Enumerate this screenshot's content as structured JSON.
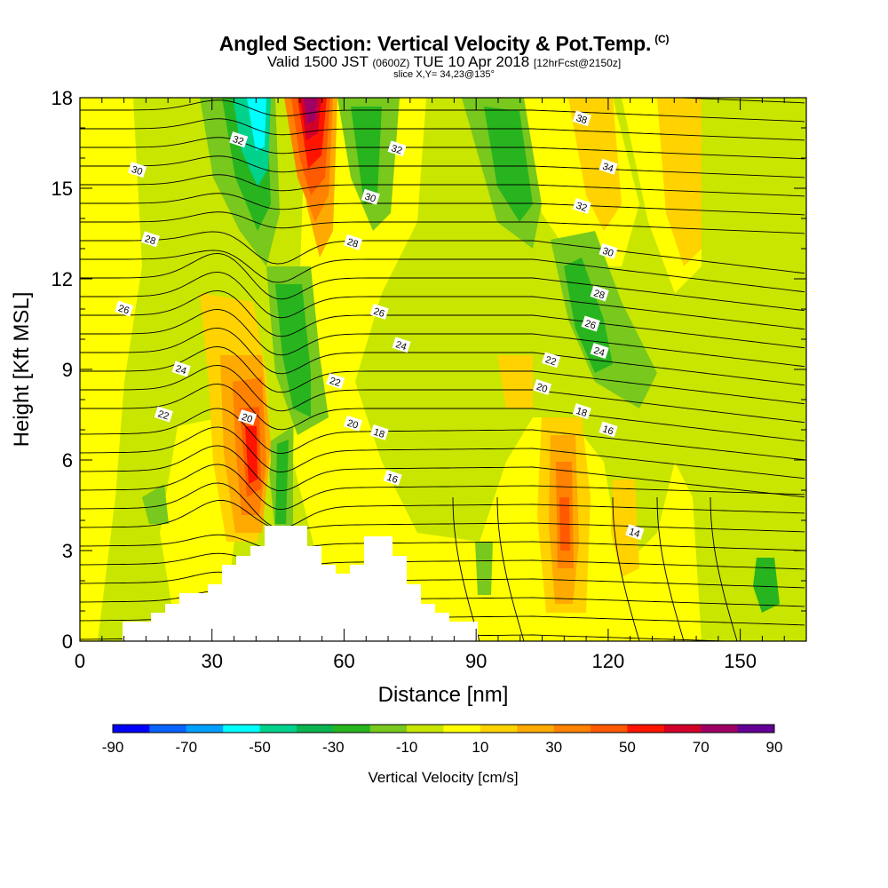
{
  "header": {
    "title": "Angled Section: Vertical Velocity & Pot.Temp.",
    "copyright": "(C)",
    "valid_main": "Valid 1500 JST",
    "valid_utc": "(0600Z)",
    "valid_date": "TUE 10 Apr 2018",
    "forecast": "[12hrFcst@2150z]",
    "slice": "slice X,Y= 34,23@135°"
  },
  "chart_data": {
    "type": "heatmap",
    "xlabel": "Distance [nm]",
    "ylabel": "Height [Kft MSL]",
    "xlim": [
      0,
      165
    ],
    "ylim": [
      0,
      18
    ],
    "x_ticks": [
      "0",
      "30",
      "60",
      "90",
      "120",
      "150"
    ],
    "x_tick_values": [
      0,
      30,
      60,
      90,
      120,
      150
    ],
    "y_ticks": [
      "0",
      "3",
      "6",
      "9",
      "12",
      "15",
      "18"
    ],
    "y_tick_values": [
      0,
      3,
      6,
      9,
      12,
      15,
      18
    ],
    "colorbar": {
      "label": "Vertical Velocity [cm/s]",
      "tick_labels": [
        "-90",
        "-70",
        "-50",
        "-30",
        "-10",
        "10",
        "30",
        "50",
        "70",
        "90"
      ],
      "tick_values": [
        -90,
        -70,
        -50,
        -30,
        -10,
        10,
        30,
        50,
        70,
        90
      ],
      "colors": [
        "#0000ff",
        "#0a64ff",
        "#00a0ff",
        "#00ffff",
        "#00d28c",
        "#0ab450",
        "#28b41e",
        "#78c81e",
        "#c8e600",
        "#ffff00",
        "#ffd200",
        "#ffaa00",
        "#ff8200",
        "#ff5a00",
        "#ff1400",
        "#d20028",
        "#a00064",
        "#640096"
      ]
    },
    "contour_labels": [
      {
        "text": "32",
        "x": 36,
        "y": 16.6
      },
      {
        "text": "30",
        "x": 13,
        "y": 15.6
      },
      {
        "text": "32",
        "x": 72,
        "y": 16.3
      },
      {
        "text": "30",
        "x": 66,
        "y": 14.7
      },
      {
        "text": "28",
        "x": 16,
        "y": 13.3
      },
      {
        "text": "28",
        "x": 62,
        "y": 13.2
      },
      {
        "text": "26",
        "x": 10,
        "y": 11.0
      },
      {
        "text": "26",
        "x": 68,
        "y": 10.9
      },
      {
        "text": "24",
        "x": 73,
        "y": 9.8
      },
      {
        "text": "24",
        "x": 23,
        "y": 9.0
      },
      {
        "text": "22",
        "x": 58,
        "y": 8.6
      },
      {
        "text": "22",
        "x": 19,
        "y": 7.5
      },
      {
        "text": "20",
        "x": 38,
        "y": 7.4
      },
      {
        "text": "20",
        "x": 62,
        "y": 7.2
      },
      {
        "text": "18",
        "x": 68,
        "y": 6.9
      },
      {
        "text": "16",
        "x": 71,
        "y": 5.4
      },
      {
        "text": "38",
        "x": 114,
        "y": 17.3
      },
      {
        "text": "34",
        "x": 120,
        "y": 15.7
      },
      {
        "text": "32",
        "x": 114,
        "y": 14.4
      },
      {
        "text": "30",
        "x": 120,
        "y": 12.9
      },
      {
        "text": "28",
        "x": 118,
        "y": 11.5
      },
      {
        "text": "26",
        "x": 116,
        "y": 10.5
      },
      {
        "text": "24",
        "x": 118,
        "y": 9.6
      },
      {
        "text": "22",
        "x": 107,
        "y": 9.3
      },
      {
        "text": "20",
        "x": 105,
        "y": 8.4
      },
      {
        "text": "18",
        "x": 114,
        "y": 7.6
      },
      {
        "text": "16",
        "x": 120,
        "y": 7.0
      },
      {
        "text": "14",
        "x": 126,
        "y": 3.6
      }
    ]
  }
}
